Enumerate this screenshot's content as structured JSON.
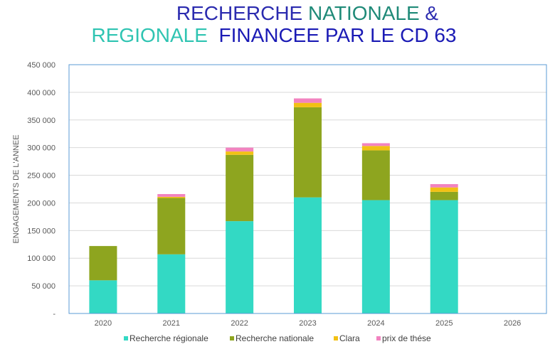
{
  "chart_data": {
    "type": "bar",
    "stacked": true,
    "title": {
      "line1": [
        {
          "text": "RECHERCHE ",
          "color": "#2b2baf"
        },
        {
          "text": "NATIONALE",
          "color": "#1f8a78"
        },
        {
          "text": " &",
          "color": "#2b2baf"
        }
      ],
      "line2": [
        {
          "text": "REGIONALE",
          "color": "#2fc4b2"
        },
        {
          "text": "  FINANCEE PAR LE CD 63",
          "color": "#1b1bb5"
        }
      ]
    },
    "categories": [
      "2020",
      "2021",
      "2022",
      "2023",
      "2024",
      "2025",
      "2026"
    ],
    "series": [
      {
        "name": "Recherche régionale",
        "color": "#33d9c4",
        "values": [
          60000,
          107000,
          167000,
          210000,
          205000,
          205000,
          0
        ]
      },
      {
        "name": "Recherche nationale",
        "color": "#8ea51f",
        "values": [
          62000,
          102000,
          120000,
          163000,
          90000,
          15000,
          0
        ]
      },
      {
        "name": "Clara",
        "color": "#f2c114",
        "values": [
          0,
          2000,
          6000,
          8000,
          8000,
          8000,
          0
        ]
      },
      {
        "name": "prix de thése",
        "color": "#f283c0",
        "values": [
          0,
          5000,
          7000,
          8000,
          5000,
          6000,
          0
        ]
      }
    ],
    "ylabel": "ENGAGEMENTS DE L'ANNEE",
    "xlabel": "",
    "ylim": [
      0,
      450000
    ],
    "yticks": [
      {
        "value": 0,
        "label": "-"
      },
      {
        "value": 50000,
        "label": "50 000"
      },
      {
        "value": 100000,
        "label": "100 000"
      },
      {
        "value": 150000,
        "label": "150 000"
      },
      {
        "value": 200000,
        "label": "200 000"
      },
      {
        "value": 250000,
        "label": "250 000"
      },
      {
        "value": 300000,
        "label": "300 000"
      },
      {
        "value": 350000,
        "label": "350 000"
      },
      {
        "value": 400000,
        "label": "400 000"
      },
      {
        "value": 450000,
        "label": "450 000"
      }
    ],
    "grid": true,
    "legend_position": "bottom"
  }
}
